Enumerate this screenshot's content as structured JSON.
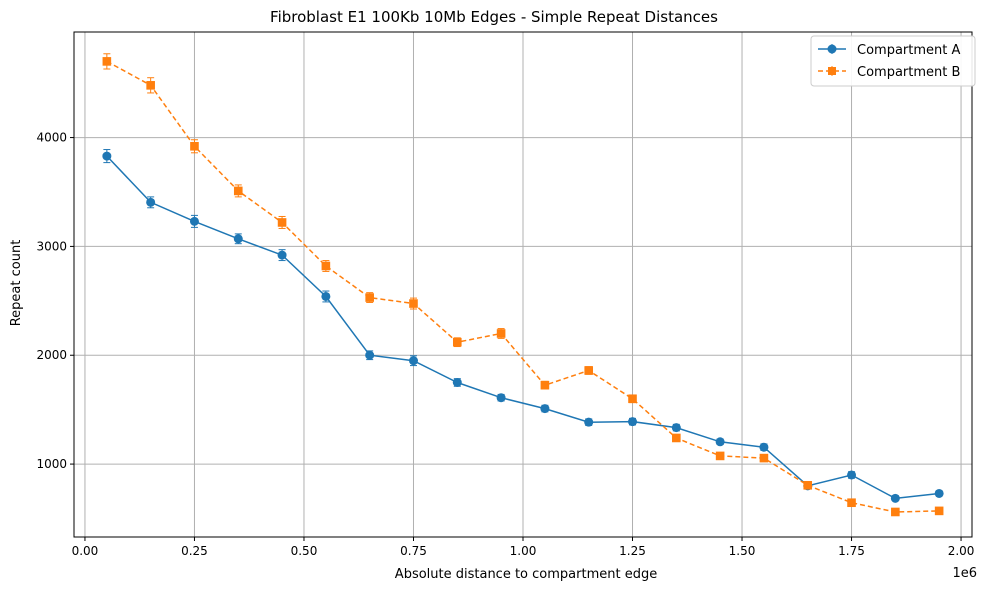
{
  "chart_data": {
    "type": "line",
    "title": "Fibroblast E1 100Kb 10Mb Edges - Simple Repeat Distances",
    "xlabel": "Absolute distance to compartment edge",
    "ylabel": "Repeat count",
    "x_offset_label": "1e6",
    "xlim": [
      -25000,
      2025000
    ],
    "ylim": [
      330,
      4970
    ],
    "x_ticks": [
      0,
      250000,
      500000,
      750000,
      1000000,
      1250000,
      1500000,
      1750000,
      2000000
    ],
    "x_tick_labels": [
      "0.00",
      "0.25",
      "0.50",
      "0.75",
      "1.00",
      "1.25",
      "1.50",
      "1.75",
      "2.00"
    ],
    "y_ticks": [
      1000,
      2000,
      3000,
      4000
    ],
    "y_tick_labels": [
      "1000",
      "2000",
      "3000",
      "4000"
    ],
    "grid": true,
    "legend_position": "top-right",
    "x": [
      50000,
      150000,
      250000,
      350000,
      450000,
      550000,
      650000,
      750000,
      850000,
      950000,
      1050000,
      1150000,
      1250000,
      1350000,
      1450000,
      1550000,
      1650000,
      1750000,
      1850000,
      1950000
    ],
    "series": [
      {
        "name": "Compartment A",
        "color": "#1f77b4",
        "marker": "circle",
        "linestyle": "solid",
        "values": [
          3830,
          3405,
          3230,
          3070,
          2920,
          2540,
          2000,
          1950,
          1750,
          1610,
          1510,
          1385,
          1390,
          1335,
          1205,
          1155,
          800,
          900,
          685,
          730
        ],
        "errors": [
          60,
          50,
          55,
          45,
          50,
          50,
          40,
          45,
          35,
          30,
          30,
          30,
          30,
          30,
          25,
          30,
          25,
          30,
          20,
          20
        ]
      },
      {
        "name": "Compartment B",
        "color": "#ff7f0e",
        "marker": "square",
        "linestyle": "dashed",
        "values": [
          4700,
          4480,
          3920,
          3510,
          3220,
          2820,
          2530,
          2475,
          2120,
          2200,
          1725,
          1860,
          1600,
          1240,
          1075,
          1055,
          805,
          645,
          560,
          570
        ],
        "errors": [
          70,
          70,
          60,
          55,
          55,
          50,
          45,
          50,
          40,
          45,
          35,
          35,
          35,
          30,
          25,
          25,
          25,
          25,
          20,
          20
        ]
      }
    ]
  }
}
